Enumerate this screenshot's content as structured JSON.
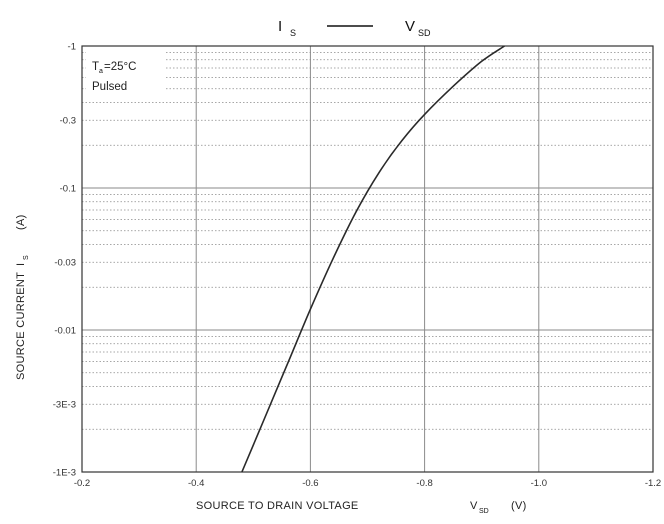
{
  "chart_data": {
    "type": "line",
    "title": {
      "left_main": "I",
      "left_sub": "S",
      "right_main": "V",
      "right_sub": "SD"
    },
    "xlabel": {
      "main": "SOURCE TO DRAIN VOLTAGE",
      "var": "V",
      "var_sub": "SD",
      "unit": "(V)"
    },
    "ylabel": {
      "main": "SOURCE CURRENT",
      "var": "I",
      "var_sub": "S",
      "unit": "(A)"
    },
    "xlim": [
      -0.2,
      -1.2
    ],
    "ylim": [
      -0.001,
      -1
    ],
    "y_scale": "log",
    "x_ticks": [
      {
        "v": -0.2,
        "label": "-0.2"
      },
      {
        "v": -0.4,
        "label": "-0.4"
      },
      {
        "v": -0.6,
        "label": "-0.6"
      },
      {
        "v": -0.8,
        "label": "-0.8"
      },
      {
        "v": -1.0,
        "label": "-1.0"
      },
      {
        "v": -1.2,
        "label": "-1.2"
      }
    ],
    "y_ticks": [
      {
        "v": -1,
        "label": "-1"
      },
      {
        "v": -0.3,
        "label": "-0.3"
      },
      {
        "v": -0.1,
        "label": "-0.1"
      },
      {
        "v": -0.03,
        "label": "-0.03"
      },
      {
        "v": -0.01,
        "label": "-0.01"
      },
      {
        "v": -0.003,
        "label": "-3E-3"
      },
      {
        "v": -0.001,
        "label": "-1E-3"
      }
    ],
    "grid": true,
    "annotations": {
      "temp_main": "T",
      "temp_sub": "a",
      "temp_value": "=25°C",
      "mode": "Pulsed"
    },
    "series": [
      {
        "x": [
          -0.48,
          -0.52,
          -0.56,
          -0.6,
          -0.64,
          -0.68,
          -0.72,
          -0.76,
          -0.8,
          -0.85,
          -0.9,
          -0.94
        ],
        "y": [
          -0.001,
          -0.0024,
          -0.0058,
          -0.014,
          -0.032,
          -0.068,
          -0.128,
          -0.215,
          -0.33,
          -0.52,
          -0.78,
          -1.0
        ]
      }
    ],
    "line_color": "#2a2a2a",
    "grid_color": "#8a8a8a"
  }
}
